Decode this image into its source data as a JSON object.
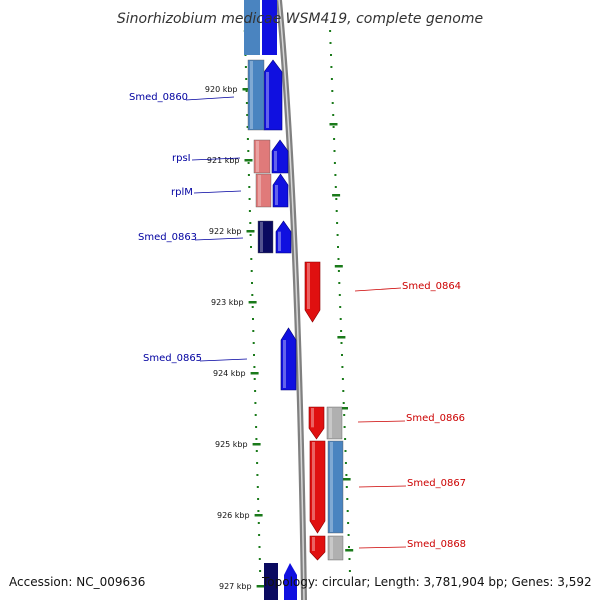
{
  "title": "Sinorhizobium medicae WSM419, complete genome",
  "footer": {
    "accession": "Accession: NC_009636",
    "genome_info": "Topology: circular; Length: 3,781,904 bp; Genes: 3,592"
  },
  "colors": {
    "forward_strand": "#1010e0",
    "reverse_strand": "#e01010",
    "forward_label": "#0000a0",
    "reverse_label": "#cc0000",
    "backbone": "#808080",
    "ruler_ticks": "#1a7a1a",
    "cog_blue": "#4a84c0",
    "cog_navy": "#0a0a60",
    "cog_pink": "#e07a7a",
    "cog_gray": "#b0b0b0"
  },
  "ruler": {
    "tick_labels": [
      "920 kbp",
      "921 kbp",
      "922 kbp",
      "923 kbp",
      "924 kbp",
      "925 kbp",
      "926 kbp",
      "927 kbp"
    ]
  },
  "genes": [
    {
      "label": "Smed_0860",
      "strand": "forward",
      "cog_color": "blue"
    },
    {
      "label": "rpsI",
      "strand": "forward",
      "cog_color": "pink"
    },
    {
      "label": "rplM",
      "strand": "forward",
      "cog_color": "pink"
    },
    {
      "label": "Smed_0863",
      "strand": "forward",
      "cog_color": "navy"
    },
    {
      "label": "Smed_0864",
      "strand": "reverse",
      "cog_color": "none"
    },
    {
      "label": "Smed_0865",
      "strand": "forward",
      "cog_color": "none"
    },
    {
      "label": "Smed_0866",
      "strand": "reverse",
      "cog_color": "gray"
    },
    {
      "label": "Smed_0867",
      "strand": "reverse",
      "cog_color": "blue"
    },
    {
      "label": "Smed_0868",
      "strand": "reverse",
      "cog_color": "gray"
    }
  ]
}
